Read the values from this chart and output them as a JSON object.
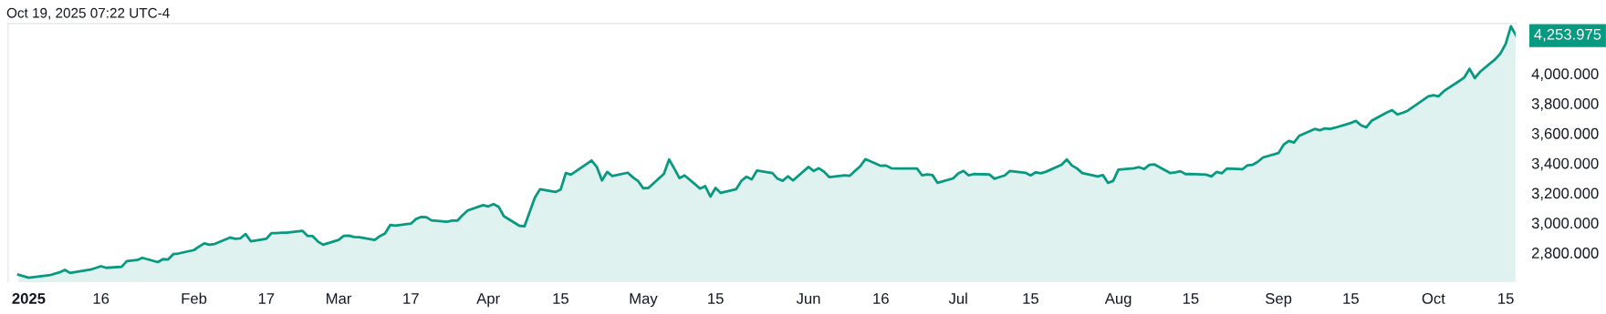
{
  "chart_data": {
    "type": "area",
    "annotations": [
      "Oct 19, 2025 07:22 UTC-4",
      "4,253.975"
    ],
    "x": [
      "2024-12-31",
      "2025-01-02",
      "2025-01-06",
      "2025-01-08",
      "2025-01-09",
      "2025-01-10",
      "2025-01-14",
      "2025-01-16",
      "2025-01-17",
      "2025-01-20",
      "2025-01-21",
      "2025-01-23",
      "2025-01-24",
      "2025-01-27",
      "2025-01-28",
      "2025-01-29",
      "2025-01-30",
      "2025-01-31",
      "2025-02-03",
      "2025-02-04",
      "2025-02-05",
      "2025-02-06",
      "2025-02-07",
      "2025-02-10",
      "2025-02-11",
      "2025-02-12",
      "2025-02-13",
      "2025-02-14",
      "2025-02-17",
      "2025-02-18",
      "2025-02-19",
      "2025-02-20",
      "2025-02-21",
      "2025-02-24",
      "2025-02-25",
      "2025-02-26",
      "2025-02-27",
      "2025-02-28",
      "2025-03-03",
      "2025-03-04",
      "2025-03-05",
      "2025-03-06",
      "2025-03-07",
      "2025-03-10",
      "2025-03-11",
      "2025-03-12",
      "2025-03-13",
      "2025-03-14",
      "2025-03-17",
      "2025-03-18",
      "2025-03-19",
      "2025-03-20",
      "2025-03-21",
      "2025-03-24",
      "2025-03-25",
      "2025-03-26",
      "2025-03-27",
      "2025-03-28",
      "2025-03-31",
      "2025-04-01",
      "2025-04-02",
      "2025-04-03",
      "2025-04-04",
      "2025-04-07",
      "2025-04-08",
      "2025-04-10",
      "2025-04-11",
      "2025-04-14",
      "2025-04-15",
      "2025-04-16",
      "2025-04-17",
      "2025-04-21",
      "2025-04-22",
      "2025-04-23",
      "2025-04-24",
      "2025-04-25",
      "2025-04-28",
      "2025-04-29",
      "2025-04-30",
      "2025-05-01",
      "2025-05-02",
      "2025-05-05",
      "2025-05-06",
      "2025-05-07",
      "2025-05-08",
      "2025-05-09",
      "2025-05-12",
      "2025-05-13",
      "2025-05-14",
      "2025-05-15",
      "2025-05-16",
      "2025-05-19",
      "2025-05-20",
      "2025-05-21",
      "2025-05-22",
      "2025-05-23",
      "2025-05-26",
      "2025-05-27",
      "2025-05-28",
      "2025-05-29",
      "2025-05-30",
      "2025-06-02",
      "2025-06-03",
      "2025-06-04",
      "2025-06-05",
      "2025-06-06",
      "2025-06-09",
      "2025-06-10",
      "2025-06-11",
      "2025-06-12",
      "2025-06-13",
      "2025-06-16",
      "2025-06-17",
      "2025-06-18",
      "2025-06-19",
      "2025-06-20",
      "2025-06-23",
      "2025-06-24",
      "2025-06-25",
      "2025-06-26",
      "2025-06-27",
      "2025-06-30",
      "2025-07-01",
      "2025-07-02",
      "2025-07-03",
      "2025-07-04",
      "2025-07-07",
      "2025-07-08",
      "2025-07-09",
      "2025-07-10",
      "2025-07-11",
      "2025-07-14",
      "2025-07-15",
      "2025-07-16",
      "2025-07-17",
      "2025-07-18",
      "2025-07-21",
      "2025-07-22",
      "2025-07-23",
      "2025-07-24",
      "2025-07-25",
      "2025-07-28",
      "2025-07-29",
      "2025-07-30",
      "2025-07-31",
      "2025-08-01",
      "2025-08-04",
      "2025-08-05",
      "2025-08-06",
      "2025-08-07",
      "2025-08-08",
      "2025-08-11",
      "2025-08-12",
      "2025-08-13",
      "2025-08-14",
      "2025-08-15",
      "2025-08-18",
      "2025-08-19",
      "2025-08-20",
      "2025-08-21",
      "2025-08-22",
      "2025-08-25",
      "2025-08-26",
      "2025-08-27",
      "2025-08-28",
      "2025-08-29",
      "2025-09-01",
      "2025-09-02",
      "2025-09-03",
      "2025-09-04",
      "2025-09-05",
      "2025-09-08",
      "2025-09-09",
      "2025-09-10",
      "2025-09-11",
      "2025-09-12",
      "2025-09-15",
      "2025-09-16",
      "2025-09-17",
      "2025-09-18",
      "2025-09-19",
      "2025-09-22",
      "2025-09-23",
      "2025-09-24",
      "2025-09-25",
      "2025-09-26",
      "2025-09-29",
      "2025-09-30",
      "2025-10-01",
      "2025-10-02",
      "2025-10-03",
      "2025-10-06",
      "2025-10-07",
      "2025-10-08",
      "2025-10-09",
      "2025-10-10",
      "2025-10-13",
      "2025-10-14",
      "2025-10-15",
      "2025-10-16",
      "2025-10-17"
    ],
    "series": [
      {
        "color": "#089981",
        "values": [
          2653,
          2633,
          2649,
          2669,
          2685,
          2665,
          2687,
          2710,
          2699,
          2706,
          2744,
          2751,
          2766,
          2737,
          2757,
          2755,
          2791,
          2795,
          2818,
          2841,
          2863,
          2854,
          2859,
          2902,
          2893,
          2897,
          2925,
          2877,
          2893,
          2931,
          2931,
          2934,
          2934,
          2947,
          2913,
          2911,
          2875,
          2854,
          2886,
          2913,
          2915,
          2906,
          2904,
          2886,
          2911,
          2929,
          2986,
          2981,
          2995,
          3026,
          3040,
          3038,
          3017,
          3008,
          3015,
          3015,
          3051,
          3083,
          3119,
          3110,
          3126,
          3108,
          3045,
          2981,
          2977,
          3168,
          3225,
          3207,
          3223,
          3334,
          3323,
          3418,
          3375,
          3284,
          3341,
          3314,
          3336,
          3305,
          3280,
          3232,
          3234,
          3329,
          3425,
          3364,
          3300,
          3318,
          3230,
          3246,
          3176,
          3234,
          3201,
          3226,
          3282,
          3309,
          3291,
          3350,
          3334,
          3296,
          3282,
          3312,
          3284,
          3375,
          3348,
          3366,
          3343,
          3307,
          3318,
          3316,
          3348,
          3379,
          3427,
          3382,
          3384,
          3366,
          3364,
          3364,
          3364,
          3318,
          3325,
          3320,
          3268,
          3298,
          3332,
          3348,
          3318,
          3327,
          3325,
          3296,
          3307,
          3318,
          3348,
          3336,
          3318,
          3339,
          3332,
          3343,
          3389,
          3425,
          3384,
          3364,
          3334,
          3311,
          3320,
          3268,
          3282,
          3357,
          3366,
          3373,
          3361,
          3389,
          3391,
          3334,
          3339,
          3346,
          3327,
          3327,
          3323,
          3311,
          3341,
          3332,
          3364,
          3359,
          3386,
          3389,
          3409,
          3438,
          3468,
          3524,
          3549,
          3538,
          3583,
          3629,
          3620,
          3633,
          3629,
          3638,
          3669,
          3683,
          3653,
          3640,
          3683,
          3740,
          3755,
          3726,
          3737,
          3751,
          3823,
          3848,
          3855,
          3848,
          3882,
          3950,
          3975,
          4032,
          3970,
          4011,
          4097,
          4136,
          4199,
          4317,
          4253.975
        ]
      }
    ],
    "xlim": [
      "2024-12-29",
      "2025-10-17"
    ],
    "ylim": [
      2600,
      4335
    ],
    "xticks": [
      {
        "value": "2025-01-02",
        "label": "2025"
      },
      {
        "value": "2025-01-16",
        "label": "16"
      },
      {
        "value": "2025-02-03",
        "label": "Feb"
      },
      {
        "value": "2025-02-17",
        "label": "17"
      },
      {
        "value": "2025-03-03",
        "label": "Mar"
      },
      {
        "value": "2025-03-17",
        "label": "17"
      },
      {
        "value": "2025-04-01",
        "label": "Apr"
      },
      {
        "value": "2025-04-15",
        "label": "15"
      },
      {
        "value": "2025-05-01",
        "label": "May"
      },
      {
        "value": "2025-05-15",
        "label": "15"
      },
      {
        "value": "2025-06-02",
        "label": "Jun"
      },
      {
        "value": "2025-06-16",
        "label": "16"
      },
      {
        "value": "2025-07-01",
        "label": "Jul"
      },
      {
        "value": "2025-07-15",
        "label": "15"
      },
      {
        "value": "2025-08-01",
        "label": "Aug"
      },
      {
        "value": "2025-08-15",
        "label": "15"
      },
      {
        "value": "2025-09-01",
        "label": "Sep"
      },
      {
        "value": "2025-09-15",
        "label": "15"
      },
      {
        "value": "2025-10-01",
        "label": "Oct"
      },
      {
        "value": "2025-10-15",
        "label": "15"
      }
    ],
    "yticks": [
      {
        "value": 2800,
        "label": "2,800.000"
      },
      {
        "value": 3000,
        "label": "3,000.000"
      },
      {
        "value": 3200,
        "label": "3,200.000"
      },
      {
        "value": 3400,
        "label": "3,400.000"
      },
      {
        "value": 3600,
        "label": "3,600.000"
      },
      {
        "value": 3800,
        "label": "3,800.000"
      },
      {
        "value": 4000,
        "label": "4,000.000"
      }
    ]
  }
}
